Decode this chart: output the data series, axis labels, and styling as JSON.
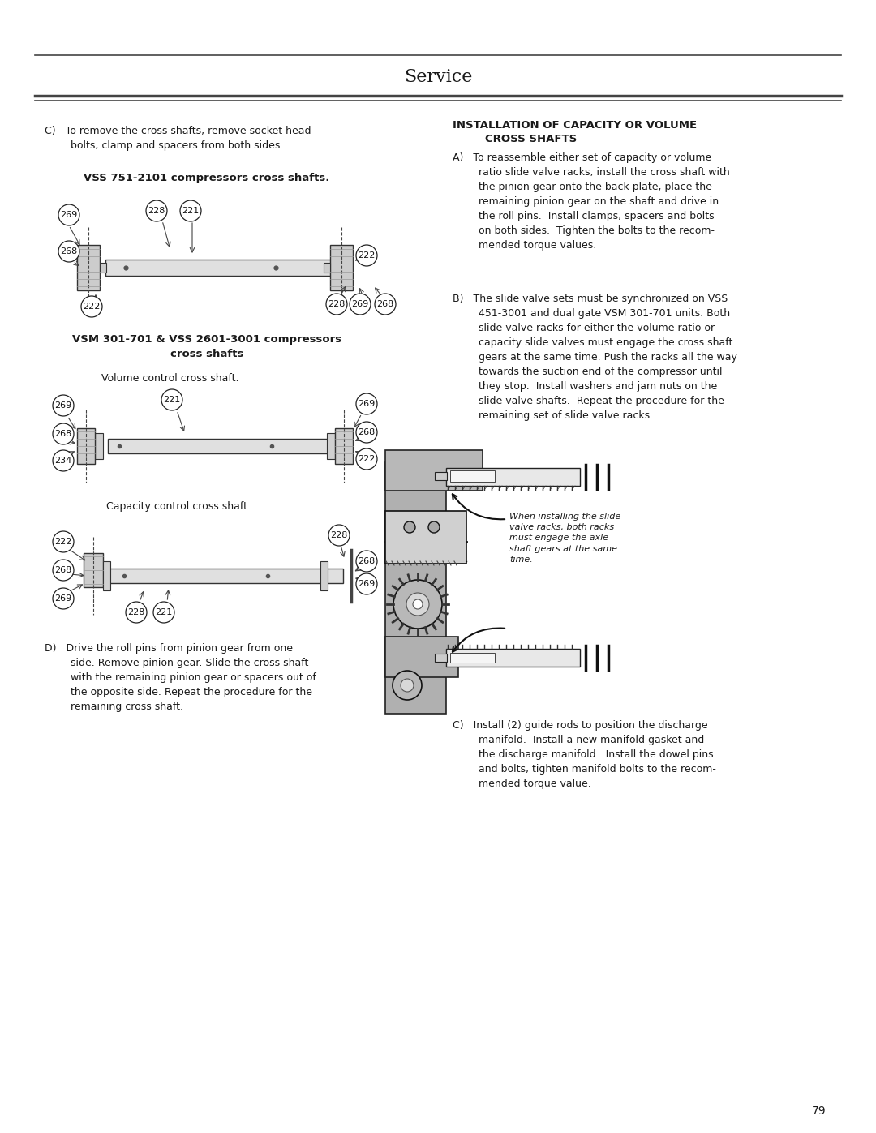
{
  "page_bg": "#ffffff",
  "header_title": "Service",
  "header_line_color": "#2a2a2a",
  "body_text_color": "#1a1a1a",
  "page_number": "79",
  "section_C_text": "C)   To remove the cross shafts, remove socket head\n        bolts, clamp and spacers from both sides.",
  "vss_title": "VSS 751-2101 compressors cross shafts.",
  "vsm_title_line1": "VSM 301-701 & VSS 2601-3001 compressors",
  "vsm_title_line2": "cross shafts",
  "vol_subtitle": "Volume control cross shaft.",
  "cap_subtitle": "Capacity control cross shaft.",
  "section_D_text": "D)   Drive the roll pins from pinion gear from one\n        side. Remove pinion gear. Slide the cross shaft\n        with the remaining pinion gear or spacers out of\n        the opposite side. Repeat the procedure for the\n        remaining cross shaft.",
  "right_title_line1": "INSTALLATION OF CAPACITY OR VOLUME",
  "right_title_line2": "CROSS SHAFTS",
  "right_A_text": "A)   To reassemble either set of capacity or volume\n        ratio slide valve racks, install the cross shaft with\n        the pinion gear onto the back plate, place the\n        remaining pinion gear on the shaft and drive in\n        the roll pins.  Install clamps, spacers and bolts\n        on both sides.  Tighten the bolts to the recom-\n        mended torque values.",
  "right_B_text": "B)   The slide valve sets must be synchronized on VSS\n        451-3001 and dual gate VSM 301-701 units. Both\n        slide valve racks for either the volume ratio or\n        capacity slide valves must engage the cross shaft\n        gears at the same time. Push the racks all the way\n        towards the suction end of the compressor until\n        they stop.  Install washers and jam nuts on the\n        slide valve shafts.  Repeat the procedure for the\n        remaining set of slide valve racks.",
  "diagram_annotation": "When installing the slide\nvalve racks, both racks\nmust engage the axle\nshaft gears at the same\ntime.",
  "right_C_text": "C)   Install (2) guide rods to position the discharge\n        manifold.  Install a new manifold gasket and\n        the discharge manifold.  Install the dowel pins\n        and bolts, tighten manifold bolts to the recom-\n        mended torque value."
}
